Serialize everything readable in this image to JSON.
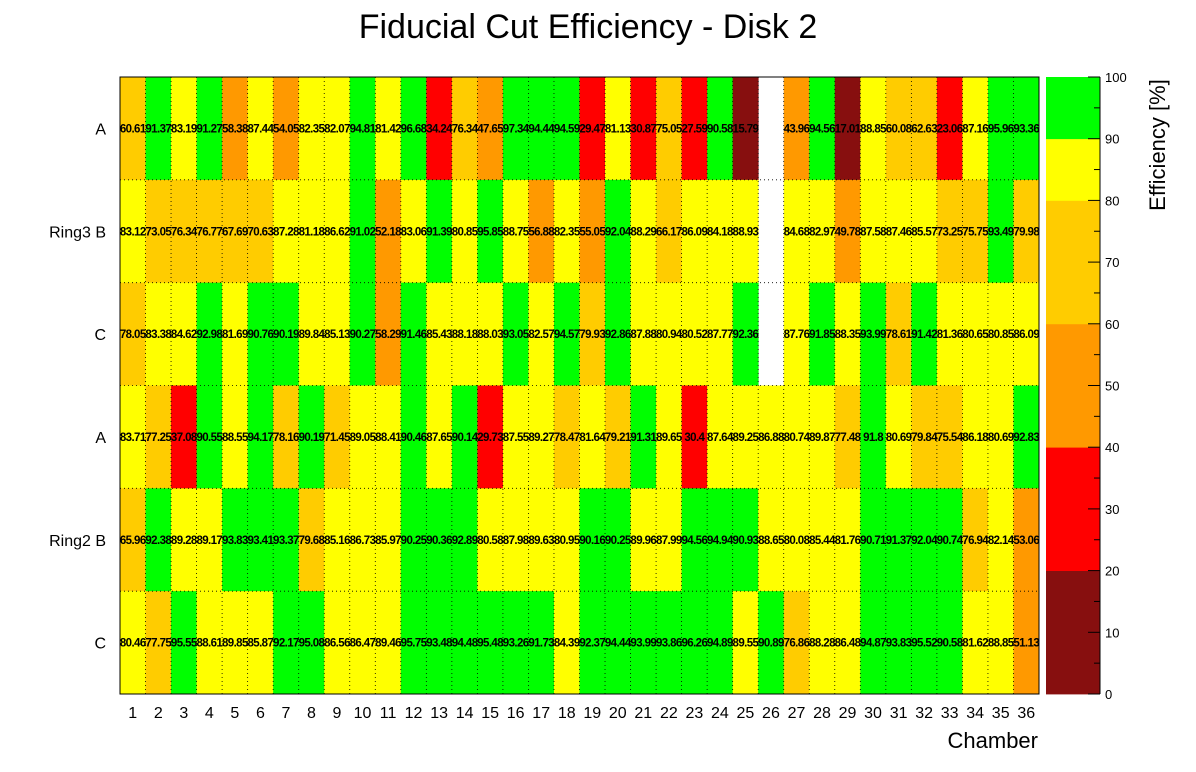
{
  "chart_data": {
    "type": "heatmap",
    "title": "Fiducial Cut Efficiency - Disk 2",
    "xlabel": "Chamber",
    "zlabel": "Efficiency [%]",
    "x": [
      "1",
      "2",
      "3",
      "4",
      "5",
      "6",
      "7",
      "8",
      "9",
      "10",
      "11",
      "12",
      "13",
      "14",
      "15",
      "16",
      "17",
      "18",
      "19",
      "20",
      "21",
      "22",
      "23",
      "24",
      "25",
      "26",
      "27",
      "28",
      "29",
      "30",
      "31",
      "32",
      "33",
      "34",
      "35",
      "36"
    ],
    "y_labels": [
      "A",
      "Ring3 B",
      "C",
      "A",
      "Ring2 B",
      "C"
    ],
    "zlim": [
      0,
      100
    ],
    "palette_ticks": [
      "0",
      "10",
      "20",
      "30",
      "40",
      "50",
      "60",
      "70",
      "80",
      "90",
      "100"
    ],
    "palette": [
      {
        "range": [
          0,
          20
        ],
        "color": "#870f0f"
      },
      {
        "range": [
          20,
          40
        ],
        "color": "#ff0000"
      },
      {
        "range": [
          40,
          60
        ],
        "color": "#ff9900"
      },
      {
        "range": [
          60,
          80
        ],
        "color": "#ffcc00"
      },
      {
        "range": [
          80,
          90
        ],
        "color": "#ffff00"
      },
      {
        "range": [
          90,
          100
        ],
        "color": "#00ff00"
      }
    ],
    "grid": true,
    "values": [
      [
        60.61,
        91.37,
        83.19,
        91.27,
        58.38,
        87.44,
        54.05,
        82.35,
        82.07,
        94.81,
        81.42,
        96.68,
        34.24,
        76.34,
        47.65,
        97.34,
        94.44,
        94.59,
        29.47,
        81.13,
        30.87,
        75.05,
        27.59,
        90.58,
        15.79,
        null,
        43.96,
        94.56,
        17.01,
        88.85,
        60.08,
        62.63,
        23.06,
        87.16,
        95.96,
        93.36
      ],
      [
        83.12,
        73.05,
        76.34,
        76.77,
        67.69,
        70.63,
        87.28,
        81.18,
        86.62,
        91.02,
        52.18,
        83.06,
        91.39,
        80.85,
        95.85,
        88.75,
        56.88,
        82.35,
        55.05,
        92.04,
        88.29,
        66.17,
        86.09,
        84.18,
        88.93,
        null,
        84.68,
        82.97,
        49.78,
        87.58,
        87.46,
        85.57,
        73.25,
        75.75,
        93.49,
        79.98
      ],
      [
        78.05,
        83.38,
        84.62,
        92.98,
        81.69,
        90.76,
        90.19,
        89.84,
        85.13,
        90.27,
        58.29,
        91.46,
        85.43,
        88.18,
        88.03,
        93.05,
        82.57,
        94.57,
        79.93,
        92.86,
        87.88,
        80.94,
        80.52,
        87.77,
        92.36,
        null,
        87.76,
        91.85,
        88.35,
        93.99,
        78.61,
        91.42,
        81.36,
        80.65,
        80.85,
        86.09
      ],
      [
        83.71,
        77.25,
        37.08,
        90.55,
        88.55,
        94.17,
        78.16,
        90.19,
        71.45,
        89.05,
        88.41,
        90.46,
        87.65,
        90.14,
        29.73,
        87.55,
        89.27,
        78.47,
        81.64,
        79.21,
        91.31,
        89.65,
        30.4,
        87.64,
        89.25,
        86.88,
        80.74,
        89.87,
        77.48,
        91.8,
        80.69,
        79.84,
        75.54,
        86.18,
        80.69,
        92.83
      ],
      [
        65.96,
        92.38,
        89.28,
        89.17,
        93.83,
        93.41,
        93.37,
        79.68,
        85.16,
        86.73,
        85.97,
        90.25,
        90.36,
        92.89,
        80.58,
        87.98,
        89.63,
        80.95,
        90.16,
        90.25,
        89.96,
        87.99,
        94.56,
        94.94,
        90.93,
        88.65,
        80.08,
        85.44,
        81.76,
        90.71,
        91.37,
        92.04,
        90.74,
        76.94,
        82.14,
        53.06
      ],
      [
        80.46,
        77.75,
        95.55,
        88.61,
        89.85,
        85.87,
        92.17,
        95.08,
        86.56,
        86.47,
        89.46,
        95.75,
        93.48,
        94.48,
        95.48,
        93.26,
        91.73,
        84.39,
        92.37,
        94.44,
        93.99,
        93.86,
        96.26,
        94.89,
        89.55,
        90.89,
        76.86,
        88.28,
        86.48,
        94.87,
        93.83,
        95.52,
        90.58,
        81.62,
        88.85,
        51.13
      ]
    ]
  }
}
